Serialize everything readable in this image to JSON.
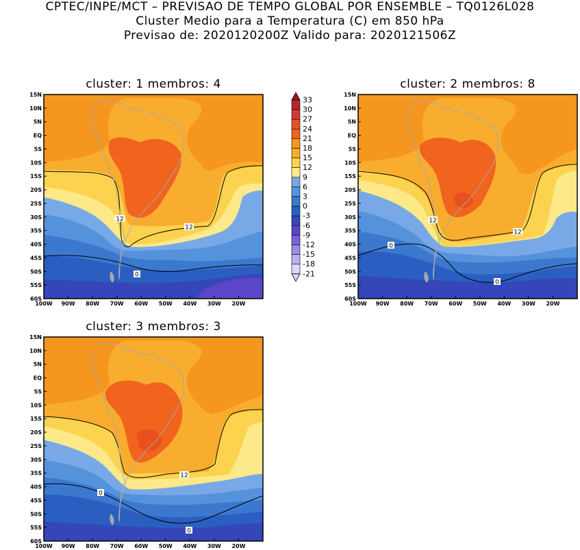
{
  "header": {
    "line1": "CPTEC/INPE/MCT – PREVISAO DE TEMPO GLOBAL POR ENSEMBLE – TQ0126L028",
    "line2": "Cluster Medio para a Temperatura (C) em 850 hPa",
    "line3": "Previsao de: 2020120200Z    Valido para: 2020121506Z"
  },
  "lat_labels": [
    "15N",
    "10N",
    "5N",
    "EQ",
    "5S",
    "10S",
    "15S",
    "20S",
    "25S",
    "30S",
    "35S",
    "40S",
    "45S",
    "50S",
    "55S",
    "60S"
  ],
  "lon_labels": [
    "100W",
    "90W",
    "80W",
    "70W",
    "60W",
    "50W",
    "40W",
    "30W",
    "20W"
  ],
  "panels": [
    {
      "title": "cluster: 1   membros: 4",
      "contour_labels": [
        "12",
        "12",
        "0"
      ]
    },
    {
      "title": "cluster: 2   membros: 8",
      "contour_labels": [
        "12",
        "12",
        "0",
        "0"
      ]
    },
    {
      "title": "cluster: 3   membros: 3",
      "contour_labels": [
        "12",
        "0",
        "0"
      ]
    }
  ],
  "colorbar": {
    "labels": [
      "33",
      "30",
      "27",
      "24",
      "21",
      "18",
      "15",
      "12",
      "9",
      "6",
      "3",
      "0",
      "-3",
      "-6",
      "-9",
      "-12",
      "-15",
      "-18",
      "-21"
    ],
    "colors": [
      "#a0141e",
      "#b42828",
      "#d23a3a",
      "#e8501e",
      "#f0641e",
      "#f5961e",
      "#f9ad2f",
      "#fcd34f",
      "#fde98a",
      "#78a9e6",
      "#5592dc",
      "#3c78cd",
      "#2a5fc1",
      "#3446b8",
      "#5a46c8",
      "#7864d6",
      "#9c8be3",
      "#bcb1ee",
      "#dcd6f7"
    ]
  }
}
